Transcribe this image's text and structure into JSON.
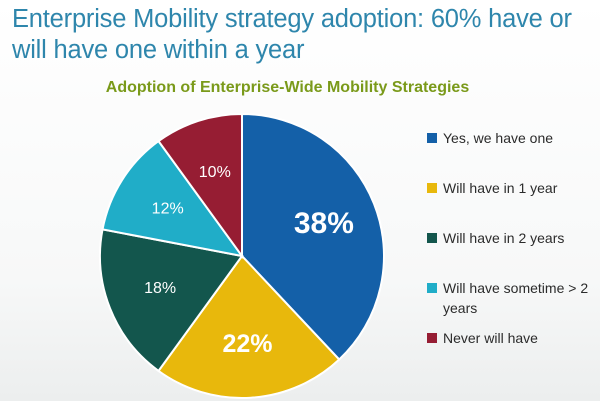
{
  "page": {
    "title": "Enterprise Mobility strategy adoption: 60% have or will have one within a year"
  },
  "chart_data": {
    "type": "pie",
    "title": "Adoption of Enterprise-Wide  Mobility Strategies",
    "categories": [
      "Yes, we have one",
      "Will have in 1 year",
      "Will have in 2 years",
      "Will have sometime > 2 years",
      "Never will have"
    ],
    "values": [
      38,
      22,
      18,
      12,
      10
    ],
    "labels": [
      "38%",
      "22%",
      "18%",
      "12%",
      "10%"
    ],
    "colors": [
      "#1460a8",
      "#e8b80c",
      "#13564d",
      "#20adc8",
      "#961d33"
    ],
    "start_angle": "12 o'clock",
    "direction": "clockwise",
    "legend_position": "right"
  }
}
